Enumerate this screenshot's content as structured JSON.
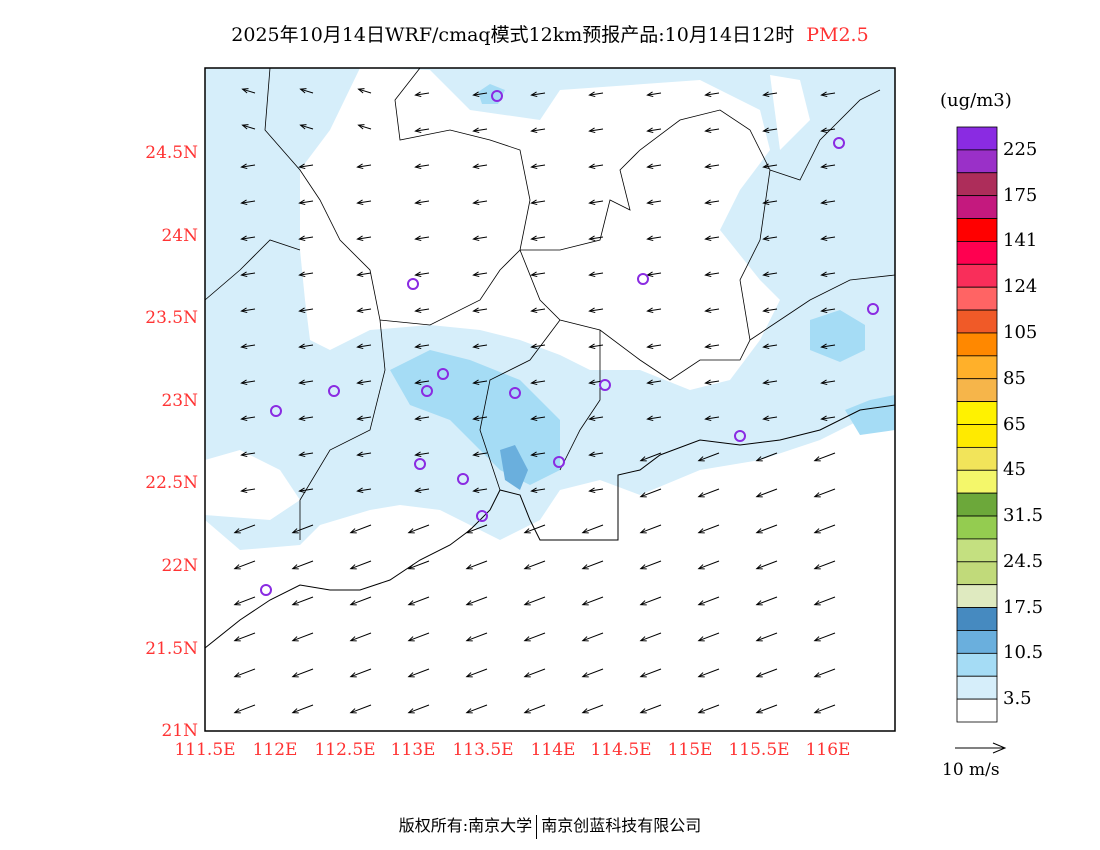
{
  "title": {
    "main": "2025年10月14日WRF/cmaq模式12km预报产品:10月14日12时",
    "species": "PM2.5"
  },
  "axes": {
    "lat_labels": [
      "24.5N",
      "24N",
      "23.5N",
      "23N",
      "22.5N",
      "22N",
      "21.5N",
      "21N"
    ],
    "lon_labels": [
      "111.5E",
      "112E",
      "112.5E",
      "113E",
      "113.5E",
      "114E",
      "114.5E",
      "115E",
      "115.5E",
      "116E"
    ]
  },
  "legend": {
    "unit": "(ug/m3)",
    "labels": [
      "225",
      "175",
      "141",
      "124",
      "105",
      "85",
      "65",
      "45",
      "31.5",
      "24.5",
      "17.5",
      "10.5",
      "3.5"
    ],
    "colors": [
      "#8a2be2",
      "#9a30c8",
      "#ad2d5a",
      "#c4197e",
      "#ff0000",
      "#ff0050",
      "#f92e5a",
      "#ff6464",
      "#f05a28",
      "#ff8800",
      "#ffb02a",
      "#f6b54a",
      "#fff200",
      "#ffea00",
      "#f2e45a",
      "#f4f76a",
      "#6ca83a",
      "#94cc50",
      "#c4e080",
      "#c1da7a",
      "#dfeac0",
      "#468ac0",
      "#6aafdd",
      "#a5dcf5",
      "#d6eefa",
      "#ffffff"
    ]
  },
  "wind_ref": "10 m/s",
  "footer": {
    "left": "版权所有:南京大学",
    "right": "南京创蓝科技有限公司"
  }
}
